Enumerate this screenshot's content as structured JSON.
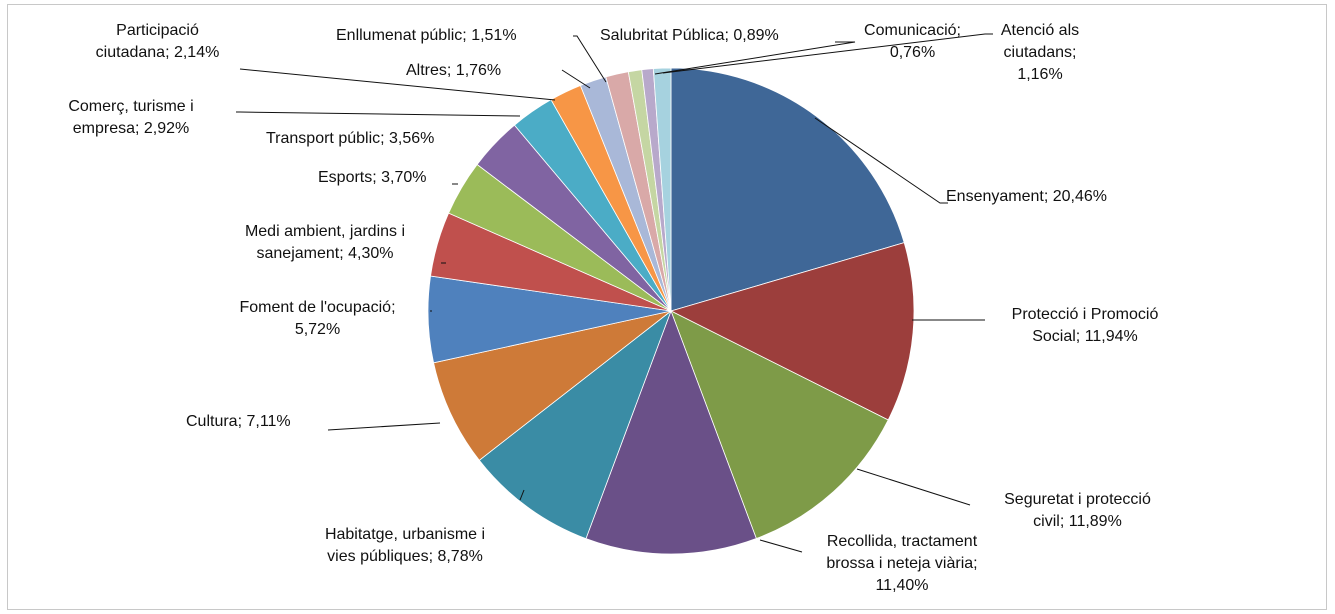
{
  "chart_data": {
    "type": "pie",
    "title": "",
    "start_angle_deg": 0,
    "direction": "clockwise",
    "slices": [
      {
        "label": "Ensenyament",
        "value": 20.46,
        "label_text": "Ensenyament; 20,46%",
        "color": "#3F6797"
      },
      {
        "label": "Protecció i Promoció Social",
        "value": 11.94,
        "label_text": "Protecció i Promoció Social; 11,94%",
        "color": "#9C3E3C"
      },
      {
        "label": "Seguretat i protecció civil",
        "value": 11.89,
        "label_text": "Seguretat i protecció civil; 11,89%",
        "color": "#7E9B48"
      },
      {
        "label": "Recollida, tractament brossa i neteja viària",
        "value": 11.4,
        "label_text": "Recollida, tractament brossa i neteja viària; 11,40%",
        "color": "#6A5088"
      },
      {
        "label": "Habitatge, urbanisme i vies públiques",
        "value": 8.78,
        "label_text": "Habitatge, urbanisme i vies públiques; 8,78%",
        "color": "#3A8CA5"
      },
      {
        "label": "Cultura",
        "value": 7.11,
        "label_text": "Cultura; 7,11%",
        "color": "#CE7A38"
      },
      {
        "label": "Foment de l'ocupació",
        "value": 5.72,
        "label_text": "Foment de l'ocupació; 5,72%",
        "color": "#4F81BD"
      },
      {
        "label": "Medi ambient, jardins i sanejament",
        "value": 4.3,
        "label_text": "Medi ambient, jardins i sanejament; 4,30%",
        "color": "#C0504D"
      },
      {
        "label": "Esports",
        "value": 3.7,
        "label_text": "Esports; 3,70%",
        "color": "#9BBB59"
      },
      {
        "label": "Transport públic",
        "value": 3.56,
        "label_text": "Transport públic; 3,56%",
        "color": "#8064A2"
      },
      {
        "label": "Comerç, turisme i empresa",
        "value": 2.92,
        "label_text": "Comerç, turisme i empresa; 2,92%",
        "color": "#4BACC6"
      },
      {
        "label": "Participació ciutadana",
        "value": 2.14,
        "label_text": "Participació ciutadana; 2,14%",
        "color": "#F79646"
      },
      {
        "label": "Altres",
        "value": 1.76,
        "label_text": "Altres; 1,76%",
        "color": "#A9B8D8"
      },
      {
        "label": "Enllumenat públic",
        "value": 1.51,
        "label_text": "Enllumenat públic; 1,51%",
        "color": "#D9A9A8"
      },
      {
        "label": "Salubritat Pública",
        "value": 0.89,
        "label_text": "Salubritat Pública; 0,89%",
        "color": "#C5D6A3"
      },
      {
        "label": "Comunicació",
        "value": 0.76,
        "label_text": "Comunicació; 0,76%",
        "color": "#B8A9CB"
      },
      {
        "label": "Atenció als ciutadans",
        "value": 1.16,
        "label_text": "Atenció als ciutadans; 1,16%",
        "color": "#A6D2DF"
      }
    ]
  },
  "labels": {
    "ensenyament": [
      "Ensenyament; 20,46%"
    ],
    "proteccio": [
      "Protecció i Promoció",
      "Social; 11,94%"
    ],
    "seguretat": [
      "Seguretat i protecció",
      "civil; 11,89%"
    ],
    "recollida": [
      "Recollida, tractament",
      "brossa i neteja viària;",
      "11,40%"
    ],
    "habitatge": [
      "Habitatge, urbanisme i",
      "vies públiques; 8,78%"
    ],
    "cultura": [
      "Cultura; 7,11%"
    ],
    "foment": [
      "Foment de l'ocupació;",
      "5,72%"
    ],
    "medi": [
      "Medi ambient, jardins i",
      "sanejament; 4,30%"
    ],
    "esports": [
      "Esports; 3,70%"
    ],
    "transport": [
      "Transport públic; 3,56%"
    ],
    "comerc": [
      "Comerç, turisme i",
      "empresa; 2,92%"
    ],
    "participacio": [
      "Participació",
      "ciutadana; 2,14%"
    ],
    "altres": [
      "Altres; 1,76%"
    ],
    "enllumenat": [
      "Enllumenat públic; 1,51%"
    ],
    "salubritat": [
      "Salubritat Pública; 0,89%"
    ],
    "comunicacio": [
      "Comunicació;",
      "0,76%"
    ],
    "atencio": [
      "Atenció als",
      "ciutadans;",
      "1,16%"
    ]
  }
}
